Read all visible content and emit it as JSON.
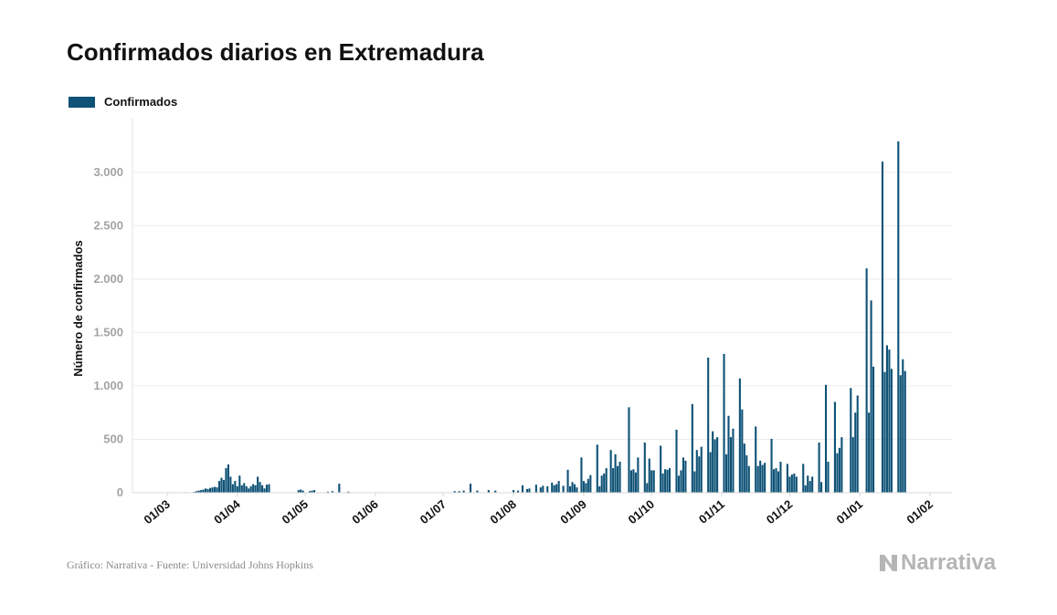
{
  "chart_data": {
    "type": "bar",
    "title": "Confirmados diarios en Extremadura",
    "ylabel": "Número de confirmados",
    "xlabel": "",
    "x_tick_labels": [
      "01/03",
      "01/04",
      "01/05",
      "01/06",
      "01/07",
      "01/08",
      "01/09",
      "01/10",
      "01/11",
      "01/12",
      "01/01",
      "01/02"
    ],
    "y_tick_labels": [
      "0",
      "500",
      "1.000",
      "1.500",
      "2.000",
      "2.500",
      "3.000"
    ],
    "y_ticks": [
      0,
      500,
      1000,
      1500,
      2000,
      2500,
      3000
    ],
    "ylim": [
      0,
      3400
    ],
    "xlim": [
      "2020-03-01",
      "2021-02-01"
    ],
    "grid": true,
    "legend_position": "top-left",
    "series": [
      {
        "name": "Confirmados",
        "color": "#0e5276",
        "data": [
          [
            "2020-03-09",
            5
          ],
          [
            "2020-03-13",
            8
          ],
          [
            "2020-03-14",
            15
          ],
          [
            "2020-03-15",
            20
          ],
          [
            "2020-03-16",
            25
          ],
          [
            "2020-03-17",
            30
          ],
          [
            "2020-03-18",
            40
          ],
          [
            "2020-03-19",
            35
          ],
          [
            "2020-03-20",
            45
          ],
          [
            "2020-03-21",
            50
          ],
          [
            "2020-03-22",
            55
          ],
          [
            "2020-03-23",
            50
          ],
          [
            "2020-03-24",
            110
          ],
          [
            "2020-03-25",
            140
          ],
          [
            "2020-03-26",
            120
          ],
          [
            "2020-03-27",
            230
          ],
          [
            "2020-03-28",
            265
          ],
          [
            "2020-03-29",
            150
          ],
          [
            "2020-03-30",
            80
          ],
          [
            "2020-03-31",
            110
          ],
          [
            "2020-04-01",
            60
          ],
          [
            "2020-04-02",
            160
          ],
          [
            "2020-04-03",
            70
          ],
          [
            "2020-04-04",
            90
          ],
          [
            "2020-04-05",
            60
          ],
          [
            "2020-04-06",
            40
          ],
          [
            "2020-04-07",
            60
          ],
          [
            "2020-04-08",
            80
          ],
          [
            "2020-04-09",
            70
          ],
          [
            "2020-04-10",
            150
          ],
          [
            "2020-04-11",
            100
          ],
          [
            "2020-04-12",
            70
          ],
          [
            "2020-04-13",
            40
          ],
          [
            "2020-04-14",
            75
          ],
          [
            "2020-04-15",
            80
          ],
          [
            "2020-04-28",
            25
          ],
          [
            "2020-04-29",
            30
          ],
          [
            "2020-04-30",
            20
          ],
          [
            "2020-05-03",
            15
          ],
          [
            "2020-05-04",
            20
          ],
          [
            "2020-05-05",
            25
          ],
          [
            "2020-05-11",
            10
          ],
          [
            "2020-05-13",
            15
          ],
          [
            "2020-05-16",
            85
          ],
          [
            "2020-05-20",
            10
          ],
          [
            "2020-07-06",
            15
          ],
          [
            "2020-07-08",
            15
          ],
          [
            "2020-07-10",
            20
          ],
          [
            "2020-07-13",
            85
          ],
          [
            "2020-07-16",
            20
          ],
          [
            "2020-07-21",
            25
          ],
          [
            "2020-07-24",
            20
          ],
          [
            "2020-08-01",
            25
          ],
          [
            "2020-08-03",
            20
          ],
          [
            "2020-08-05",
            70
          ],
          [
            "2020-08-07",
            35
          ],
          [
            "2020-08-08",
            40
          ],
          [
            "2020-08-11",
            75
          ],
          [
            "2020-08-13",
            50
          ],
          [
            "2020-08-14",
            65
          ],
          [
            "2020-08-16",
            60
          ],
          [
            "2020-08-18",
            95
          ],
          [
            "2020-08-19",
            70
          ],
          [
            "2020-08-20",
            80
          ],
          [
            "2020-08-21",
            110
          ],
          [
            "2020-08-23",
            65
          ],
          [
            "2020-08-25",
            215
          ],
          [
            "2020-08-26",
            60
          ],
          [
            "2020-08-27",
            100
          ],
          [
            "2020-08-28",
            80
          ],
          [
            "2020-08-29",
            50
          ],
          [
            "2020-08-31",
            330
          ],
          [
            "2020-09-01",
            110
          ],
          [
            "2020-09-02",
            90
          ],
          [
            "2020-09-03",
            130
          ],
          [
            "2020-09-04",
            165
          ],
          [
            "2020-09-07",
            450
          ],
          [
            "2020-09-08",
            60
          ],
          [
            "2020-09-09",
            160
          ],
          [
            "2020-09-10",
            180
          ],
          [
            "2020-09-11",
            230
          ],
          [
            "2020-09-13",
            400
          ],
          [
            "2020-09-14",
            230
          ],
          [
            "2020-09-15",
            360
          ],
          [
            "2020-09-16",
            250
          ],
          [
            "2020-09-17",
            290
          ],
          [
            "2020-09-21",
            800
          ],
          [
            "2020-09-22",
            210
          ],
          [
            "2020-09-23",
            220
          ],
          [
            "2020-09-24",
            190
          ],
          [
            "2020-09-25",
            330
          ],
          [
            "2020-09-28",
            470
          ],
          [
            "2020-09-29",
            90
          ],
          [
            "2020-09-30",
            320
          ],
          [
            "2020-10-01",
            210
          ],
          [
            "2020-10-02",
            210
          ],
          [
            "2020-10-05",
            440
          ],
          [
            "2020-10-06",
            180
          ],
          [
            "2020-10-07",
            220
          ],
          [
            "2020-10-08",
            215
          ],
          [
            "2020-10-09",
            230
          ],
          [
            "2020-10-12",
            590
          ],
          [
            "2020-10-13",
            160
          ],
          [
            "2020-10-14",
            210
          ],
          [
            "2020-10-15",
            330
          ],
          [
            "2020-10-16",
            300
          ],
          [
            "2020-10-19",
            830
          ],
          [
            "2020-10-20",
            200
          ],
          [
            "2020-10-21",
            400
          ],
          [
            "2020-10-22",
            340
          ],
          [
            "2020-10-23",
            430
          ],
          [
            "2020-10-26",
            1265
          ],
          [
            "2020-10-27",
            380
          ],
          [
            "2020-10-28",
            575
          ],
          [
            "2020-10-29",
            500
          ],
          [
            "2020-10-30",
            520
          ],
          [
            "2020-11-02",
            1300
          ],
          [
            "2020-11-03",
            360
          ],
          [
            "2020-11-04",
            720
          ],
          [
            "2020-11-05",
            520
          ],
          [
            "2020-11-06",
            600
          ],
          [
            "2020-11-09",
            1070
          ],
          [
            "2020-11-10",
            780
          ],
          [
            "2020-11-11",
            460
          ],
          [
            "2020-11-12",
            350
          ],
          [
            "2020-11-13",
            250
          ],
          [
            "2020-11-16",
            620
          ],
          [
            "2020-11-17",
            250
          ],
          [
            "2020-11-18",
            300
          ],
          [
            "2020-11-19",
            260
          ],
          [
            "2020-11-20",
            280
          ],
          [
            "2020-11-23",
            505
          ],
          [
            "2020-11-24",
            220
          ],
          [
            "2020-11-25",
            230
          ],
          [
            "2020-11-26",
            200
          ],
          [
            "2020-11-27",
            290
          ],
          [
            "2020-11-30",
            270
          ],
          [
            "2020-12-01",
            150
          ],
          [
            "2020-12-02",
            170
          ],
          [
            "2020-12-03",
            180
          ],
          [
            "2020-12-04",
            150
          ],
          [
            "2020-12-07",
            270
          ],
          [
            "2020-12-08",
            70
          ],
          [
            "2020-12-09",
            160
          ],
          [
            "2020-12-10",
            110
          ],
          [
            "2020-12-11",
            150
          ],
          [
            "2020-12-14",
            470
          ],
          [
            "2020-12-15",
            100
          ],
          [
            "2020-12-17",
            1010
          ],
          [
            "2020-12-18",
            290
          ],
          [
            "2020-12-21",
            850
          ],
          [
            "2020-12-22",
            370
          ],
          [
            "2020-12-23",
            420
          ],
          [
            "2020-12-24",
            520
          ],
          [
            "2020-12-28",
            980
          ],
          [
            "2020-12-29",
            520
          ],
          [
            "2020-12-30",
            750
          ],
          [
            "2020-12-31",
            910
          ],
          [
            "2021-01-04",
            2100
          ],
          [
            "2021-01-05",
            750
          ],
          [
            "2021-01-06",
            1800
          ],
          [
            "2021-01-07",
            1180
          ],
          [
            "2021-01-11",
            3100
          ],
          [
            "2021-01-12",
            1130
          ],
          [
            "2021-01-13",
            1380
          ],
          [
            "2021-01-14",
            1340
          ],
          [
            "2021-01-15",
            1160
          ],
          [
            "2021-01-18",
            3290
          ],
          [
            "2021-01-19",
            1100
          ],
          [
            "2021-01-20",
            1250
          ],
          [
            "2021-01-21",
            1140
          ]
        ]
      }
    ]
  },
  "legend": {
    "label": "Confirmados"
  },
  "footer": {
    "source": "Gráfico: Narrativa - Fuente: Universidad Johns Hopkins",
    "brand": "Narrativa"
  }
}
